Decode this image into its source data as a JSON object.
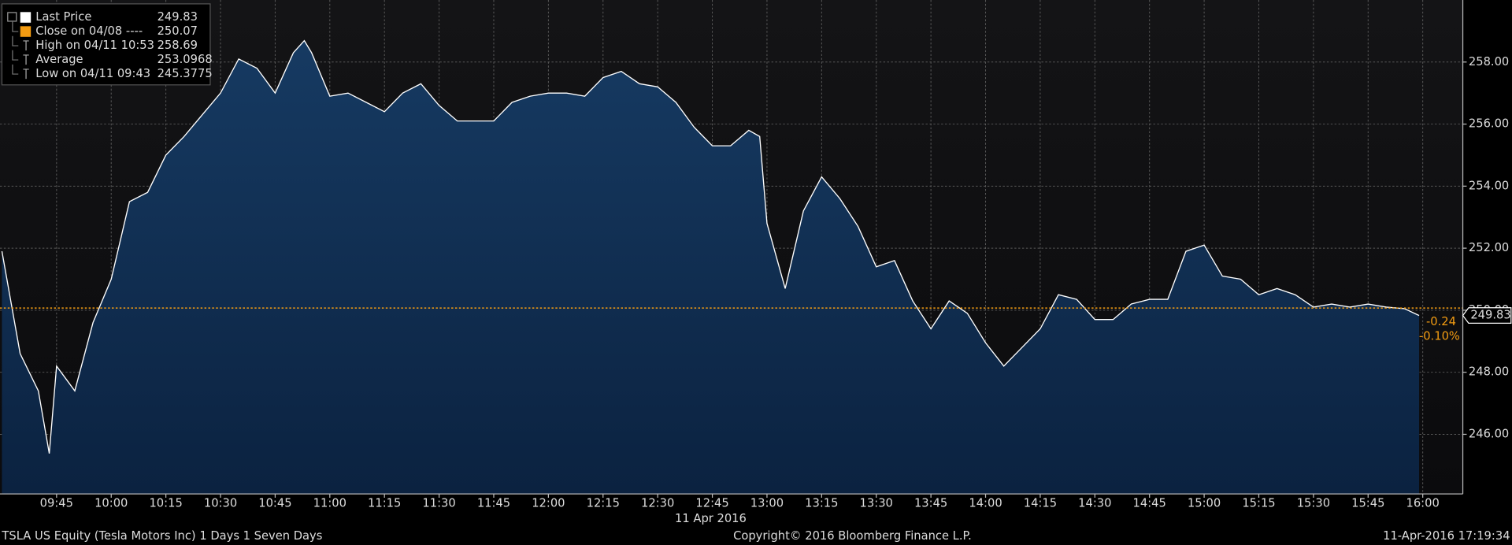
{
  "chart_data": {
    "type": "area",
    "legend": [
      {
        "label": "Last Price",
        "value": 249.83,
        "color": "#ffffff"
      },
      {
        "label": "Close on 04/08 ----",
        "value": 250.07,
        "color": "#f39c12"
      },
      {
        "label": "High on 04/11 10:53",
        "value": 258.69
      },
      {
        "label": "Average",
        "value": 253.0968
      },
      {
        "label": "Low on 04/11 09:43",
        "value": 245.3775
      }
    ],
    "x": [
      "09:30",
      "09:35",
      "09:40",
      "09:43",
      "09:45",
      "09:50",
      "09:55",
      "10:00",
      "10:05",
      "10:10",
      "10:15",
      "10:20",
      "10:25",
      "10:30",
      "10:35",
      "10:40",
      "10:45",
      "10:50",
      "10:53",
      "10:55",
      "11:00",
      "11:05",
      "11:10",
      "11:15",
      "11:20",
      "11:25",
      "11:30",
      "11:35",
      "11:40",
      "11:45",
      "11:50",
      "11:55",
      "12:00",
      "12:05",
      "12:10",
      "12:15",
      "12:20",
      "12:25",
      "12:30",
      "12:35",
      "12:40",
      "12:45",
      "12:50",
      "12:55",
      "12:58",
      "13:00",
      "13:05",
      "13:10",
      "13:15",
      "13:20",
      "13:25",
      "13:30",
      "13:35",
      "13:40",
      "13:45",
      "13:50",
      "13:55",
      "14:00",
      "14:05",
      "14:10",
      "14:15",
      "14:20",
      "14:25",
      "14:30",
      "14:35",
      "14:40",
      "14:45",
      "14:50",
      "14:55",
      "15:00",
      "15:05",
      "15:10",
      "15:15",
      "15:20",
      "15:25",
      "15:30",
      "15:35",
      "15:40",
      "15:45",
      "15:50",
      "15:55",
      "15:59"
    ],
    "values": [
      251.9,
      248.6,
      247.4,
      245.38,
      248.2,
      247.4,
      249.6,
      251.0,
      253.5,
      253.8,
      255.0,
      255.6,
      256.3,
      257.0,
      258.1,
      257.8,
      257.0,
      258.3,
      258.69,
      258.3,
      256.9,
      257.0,
      256.7,
      256.4,
      257.0,
      257.3,
      256.6,
      256.1,
      256.1,
      256.1,
      256.7,
      256.9,
      257.0,
      257.0,
      256.9,
      257.5,
      257.7,
      257.3,
      257.2,
      256.7,
      255.9,
      255.3,
      255.3,
      255.8,
      255.6,
      252.8,
      250.7,
      253.2,
      254.3,
      253.6,
      252.7,
      251.4,
      251.6,
      250.3,
      249.4,
      250.3,
      249.9,
      248.95,
      248.2,
      248.8,
      249.4,
      250.5,
      250.35,
      249.7,
      249.7,
      250.2,
      250.35,
      250.35,
      251.9,
      252.1,
      251.1,
      251.0,
      250.5,
      250.7,
      250.5,
      250.1,
      250.2,
      250.1,
      250.2,
      250.1,
      250.05,
      249.83
    ],
    "line_color": "#ffffff",
    "fill_color": "#15345a",
    "xlim": [
      "09:30",
      "16:11"
    ],
    "xticks": [
      "09:45",
      "10:00",
      "10:15",
      "10:30",
      "10:45",
      "11:00",
      "11:15",
      "11:30",
      "11:45",
      "12:00",
      "12:15",
      "12:30",
      "12:45",
      "13:00",
      "13:15",
      "13:30",
      "13:45",
      "14:00",
      "14:15",
      "14:30",
      "14:45",
      "15:00",
      "15:15",
      "15:30",
      "15:45",
      "16:00"
    ],
    "x_date_label": "11 Apr 2016",
    "ylim": [
      244.08,
      260
    ],
    "yticks": [
      {
        "value": 246,
        "label": "246.00"
      },
      {
        "value": 248,
        "label": "248.00"
      },
      {
        "value": 250,
        "label": "250.00"
      },
      {
        "value": 252,
        "label": "252.00"
      },
      {
        "value": 254,
        "label": "254.00"
      },
      {
        "value": 256,
        "label": "256.00"
      },
      {
        "value": 258,
        "label": "258.00"
      }
    ],
    "grid": true,
    "change": -0.24,
    "change_pct": {
      "value": -0.1,
      "label": "-0.10%"
    },
    "footer_left": "TSLA US Equity (Tesla Motors Inc) 1 Days 1 Seven Days",
    "footer_center": "Copyright© 2016 Bloomberg Finance L.P.",
    "footer_right": "11-Apr-2016 17:19:34"
  }
}
